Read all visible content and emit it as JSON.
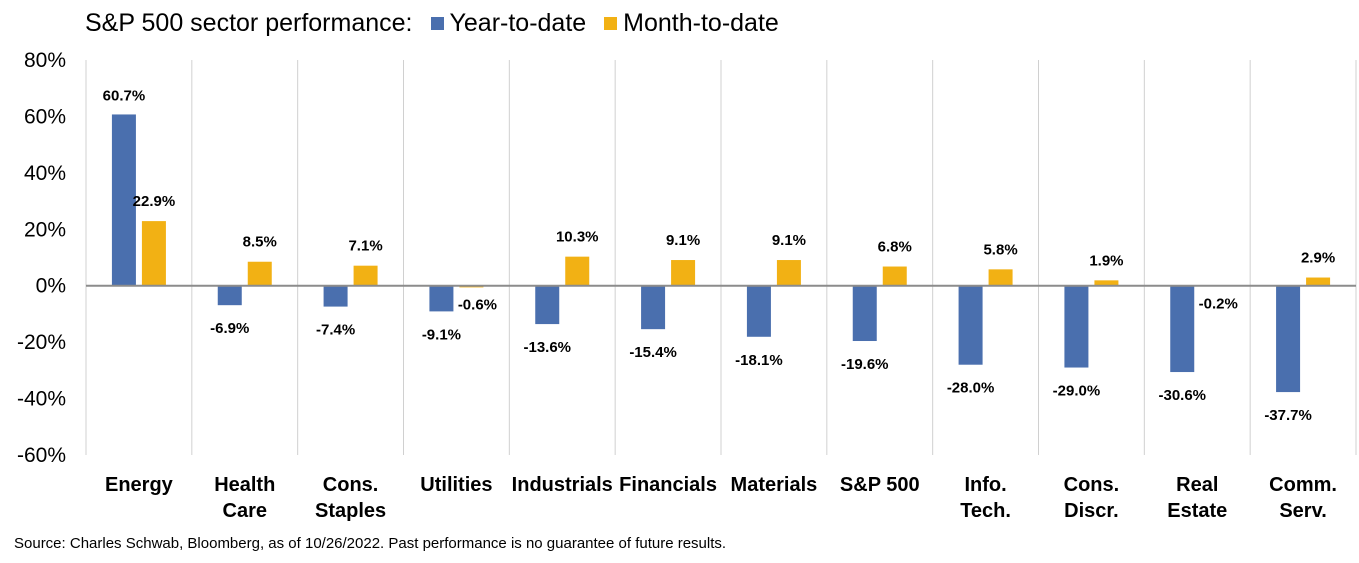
{
  "chart_data": {
    "type": "bar",
    "title": "S&P 500 sector performance:",
    "categories": [
      [
        "Energy"
      ],
      [
        "Health",
        "Care"
      ],
      [
        "Cons.",
        "Staples"
      ],
      [
        "Utilities"
      ],
      [
        "Industrials"
      ],
      [
        "Financials"
      ],
      [
        "Materials"
      ],
      [
        "S&P 500"
      ],
      [
        "Info.",
        "Tech."
      ],
      [
        "Cons.",
        "Discr."
      ],
      [
        "Real",
        "Estate"
      ],
      [
        "Comm.",
        "Serv."
      ]
    ],
    "series": [
      {
        "name": "Year-to-date",
        "color": "#4a6fae",
        "values": [
          60.7,
          -6.9,
          -7.4,
          -9.1,
          -13.6,
          -15.4,
          -18.1,
          -19.6,
          -28.0,
          -29.0,
          -30.6,
          -37.7
        ],
        "labels": [
          "60.7%",
          "-6.9%",
          "-7.4%",
          "-9.1%",
          "-13.6%",
          "-15.4%",
          "-18.1%",
          "-19.6%",
          "-28.0%",
          "-29.0%",
          "-30.6%",
          "-37.7%"
        ]
      },
      {
        "name": "Month-to-date",
        "color": "#f2b114",
        "values": [
          22.9,
          8.5,
          7.1,
          -0.6,
          10.3,
          9.1,
          9.1,
          6.8,
          5.8,
          1.9,
          -0.2,
          2.9
        ],
        "labels": [
          "22.9%",
          "8.5%",
          "7.1%",
          "-0.6%",
          "10.3%",
          "9.1%",
          "9.1%",
          "6.8%",
          "5.8%",
          "1.9%",
          "-0.2%",
          "2.9%"
        ]
      }
    ],
    "ylim": [
      -60,
      80
    ],
    "yticks": [
      80,
      60,
      40,
      20,
      0,
      -20,
      -40,
      -60
    ],
    "ytick_labels": [
      "80%",
      "60%",
      "40%",
      "20%",
      "0%",
      "-20%",
      "-40%",
      "-60%"
    ],
    "grid": "vertical category separators",
    "legend_position": "top"
  },
  "source_note": "Source: Charles Schwab, Bloomberg, as of 10/26/2022.  Past performance is no guarantee of future results."
}
